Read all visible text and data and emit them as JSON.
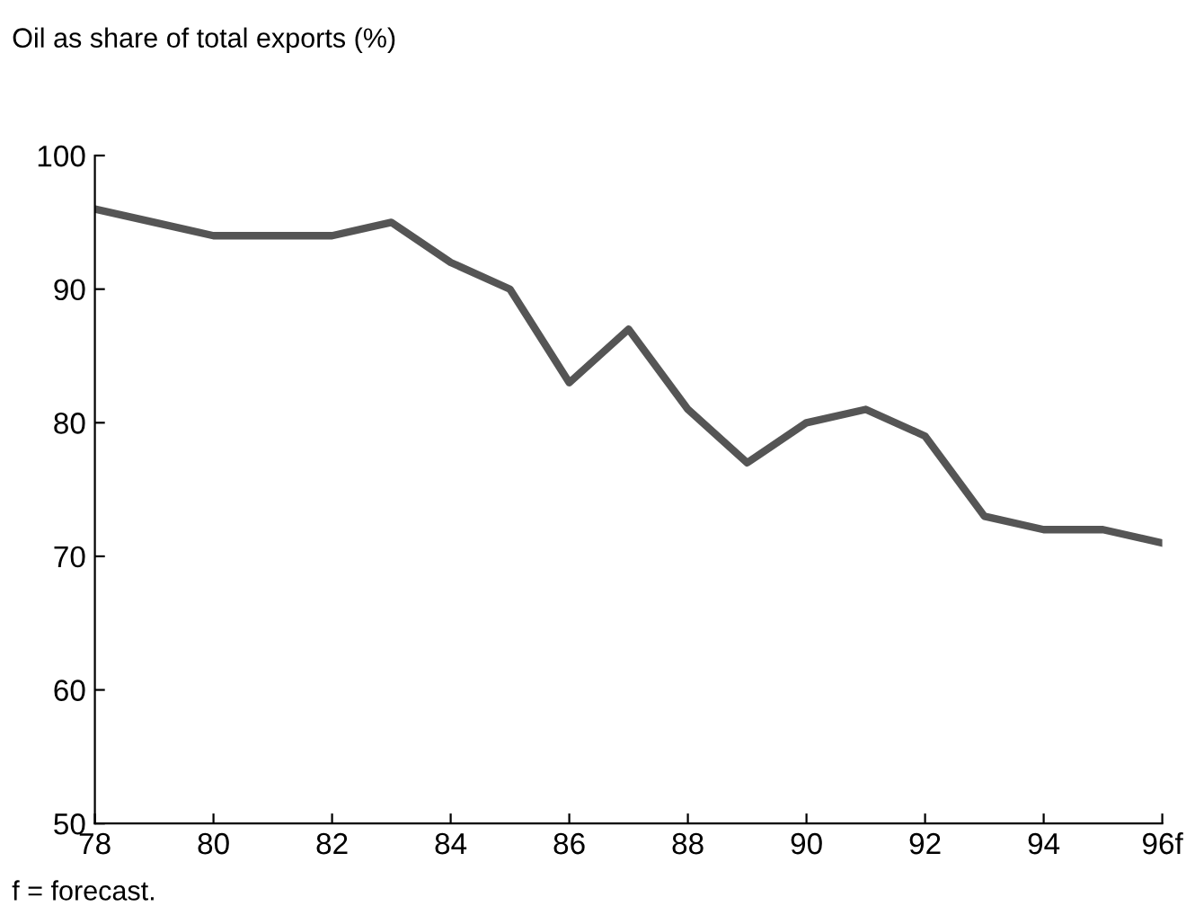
{
  "chart_data": {
    "type": "line",
    "ylabel": "Oil as share of total exports (%)",
    "x": [
      78,
      79,
      80,
      81,
      82,
      83,
      84,
      85,
      86,
      87,
      88,
      89,
      90,
      91,
      92,
      93,
      94,
      95,
      96
    ],
    "series": [
      {
        "color": "#555555",
        "values": [
          96,
          95,
          94,
          94,
          94,
          95,
          92,
          90,
          83,
          87,
          81,
          77,
          80,
          81,
          79,
          73,
          72,
          72,
          71
        ]
      }
    ],
    "xlim": [
      78,
      96
    ],
    "xticks": [
      78,
      80,
      82,
      84,
      86,
      88,
      90,
      92,
      94,
      {
        "value": 96,
        "label": "96f"
      }
    ],
    "ylim": [
      50,
      100
    ],
    "yticks": [
      50,
      60,
      70,
      80,
      90,
      100
    ],
    "grid": false,
    "legend": false,
    "marker": "none",
    "line_style": "solid",
    "annotations": [
      "f = forecast."
    ]
  }
}
